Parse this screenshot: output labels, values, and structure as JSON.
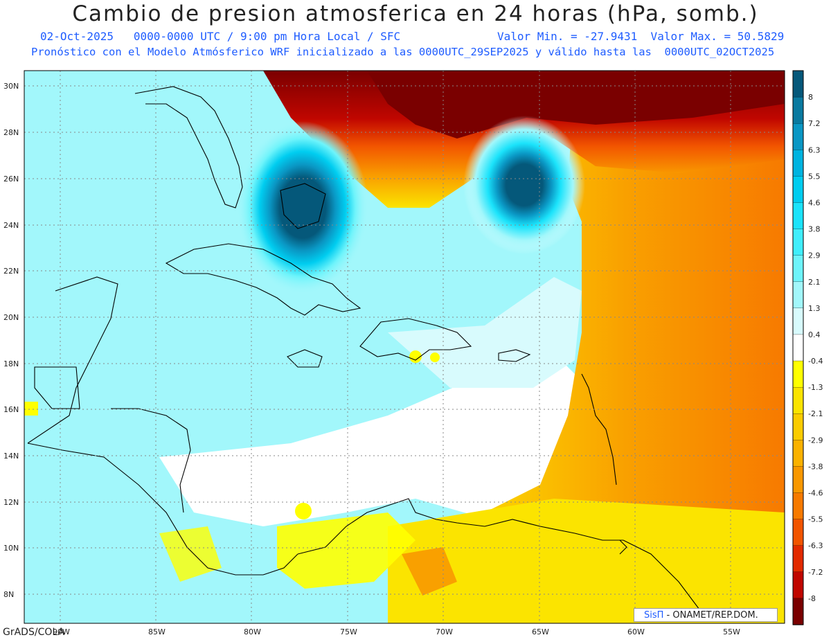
{
  "title": "Cambio de presion atmosferica en 24 horas (hPa, somb.)",
  "subtitle_left": "02-Oct-2025   0000-0000 UTC / 9:00 pm Hora Local / SFC",
  "subtitle_right": "Valor Min. = -27.9431  Valor Max. = 50.5829",
  "subtitle_2": "Pronóstico con el Modelo Atmósferico WRF inicializado a las 0000UTC_29SEP2025 y válido hasta las  0000UTC_02OCT2025",
  "footer": "GrADS/COLA",
  "credit_brand": "SisΠ",
  "credit_text": " - ONAMET/REP.DOM.",
  "lat_labels": [
    "30N",
    "28N",
    "26N",
    "24N",
    "22N",
    "20N",
    "18N",
    "16N",
    "14N",
    "12N",
    "10N",
    "8N"
  ],
  "lon_labels": [
    "90W",
    "85W",
    "80W",
    "75W",
    "70W",
    "65W",
    "60W",
    "55W"
  ],
  "colorbar": {
    "labels": [
      "8",
      "7.2",
      "6.3",
      "5.5",
      "4.6",
      "3.8",
      "2.9",
      "2.1",
      "1.3",
      "0.4",
      "-0.4",
      "-1.3",
      "-2.1",
      "-2.9",
      "-3.8",
      "-4.6",
      "-5.5",
      "-6.3",
      "-7.2",
      "-8"
    ],
    "colors": [
      "#05587a",
      "#0a7aa0",
      "#0a97c4",
      "#00b4e0",
      "#00cdf0",
      "#1be3fb",
      "#40eefc",
      "#6ef4fb",
      "#a2f7fb",
      "#d8fbfd",
      "#ffffff",
      "#ffff00",
      "#fbe400",
      "#fbcc00",
      "#fbb200",
      "#f99800",
      "#f77a00",
      "#f25500",
      "#e22a00",
      "#c00600",
      "#7a0000"
    ]
  },
  "icons": {
    "globe": "map-icon"
  }
}
